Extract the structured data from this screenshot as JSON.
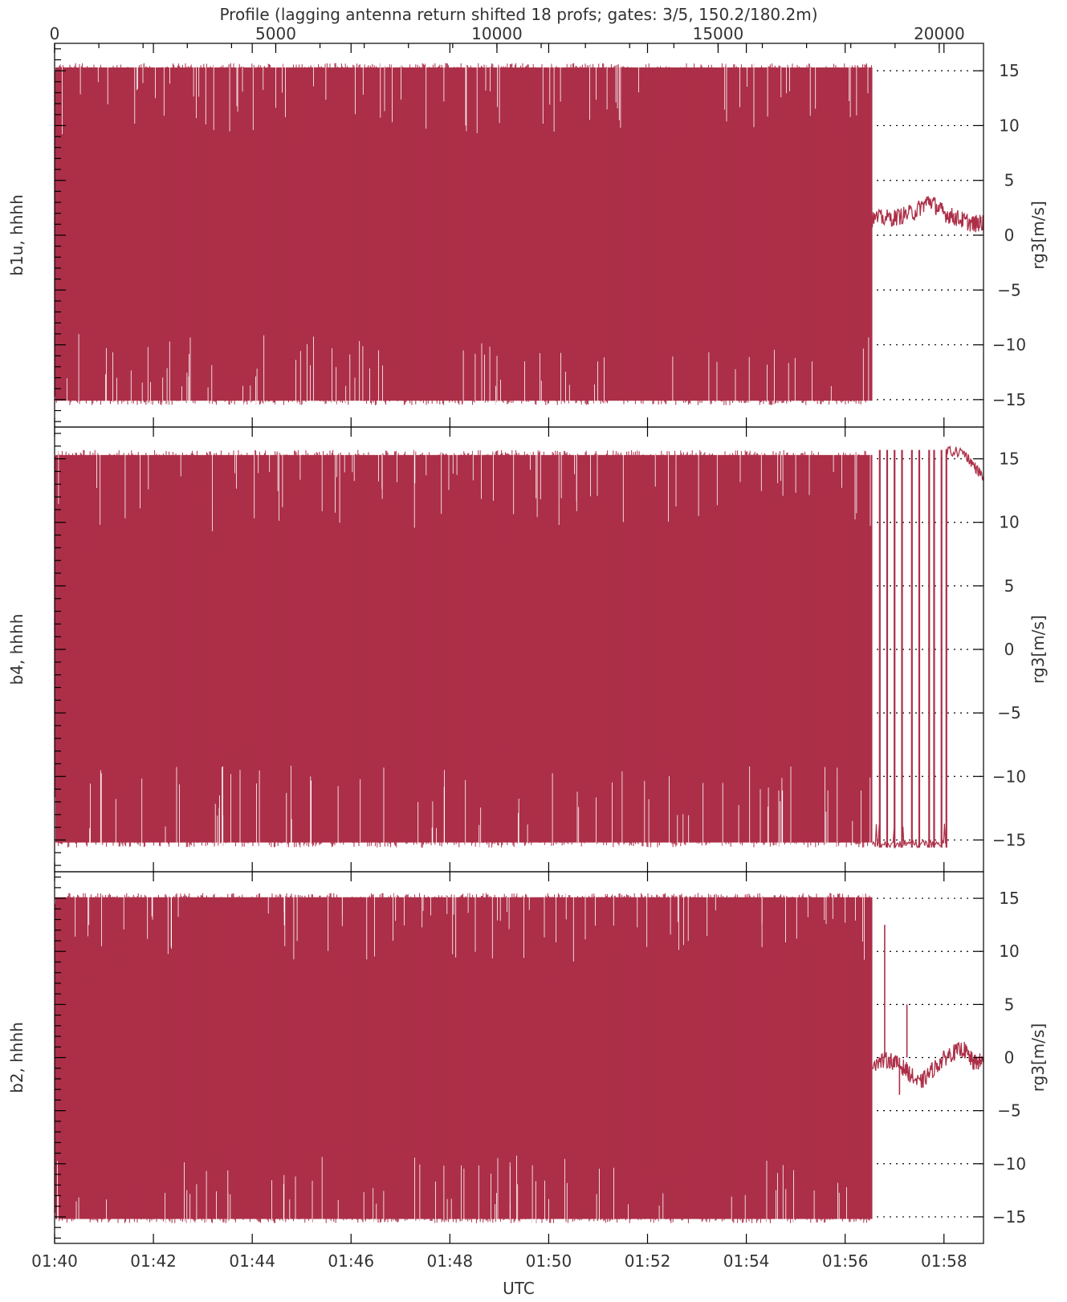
{
  "chart_data": {
    "type": "line",
    "top_axis": {
      "title": "Profile (lagging antenna return shifted 18 profs; gates: 3/5, 150.2/180.2m)",
      "range": [
        0,
        21000
      ],
      "ticks": [
        0,
        5000,
        10000,
        15000,
        20000
      ],
      "tick_labels": [
        "0",
        "5000",
        "10000",
        "15000",
        "20000"
      ]
    },
    "bottom_axis": {
      "title": "UTC",
      "range_minutes": [
        100,
        118.8
      ],
      "ticks_minutes": [
        100,
        102,
        104,
        106,
        108,
        110,
        112,
        114,
        116,
        118
      ],
      "tick_labels": [
        "01:40",
        "01:42",
        "01:44",
        "01:46",
        "01:48",
        "01:50",
        "01:52",
        "01:54",
        "01:56",
        "01:58"
      ]
    },
    "y_axis": {
      "ylim": [
        -17.5,
        17.5
      ],
      "ticks": [
        -15,
        -10,
        -5,
        0,
        5,
        10,
        15
      ],
      "tick_labels": [
        "−15",
        "−10",
        "−5",
        "0",
        "5",
        "10",
        "15"
      ],
      "ylabel_right": "rg3[m/s]"
    },
    "grid": "horizontal dotted at labeled ticks",
    "line_color": "#ac2f48",
    "panels": [
      {
        "label": "b1u, hhhh",
        "dense_until_minutes": 116.55,
        "dense_range": [
          -15.5,
          15.7
        ],
        "tail": [
          [
            116.55,
            1.5
          ],
          [
            117.0,
            1.6
          ],
          [
            117.4,
            2.1
          ],
          [
            117.7,
            3.2
          ],
          [
            118.0,
            2.0
          ],
          [
            118.3,
            1.5
          ],
          [
            118.6,
            1.0
          ],
          [
            118.8,
            1.2
          ]
        ]
      },
      {
        "label": "b4, hhhh",
        "dense_until_minutes": 116.55,
        "dense_range": [
          -15.6,
          15.7
        ],
        "spikes_minutes": [
          116.7,
          116.85,
          117.0,
          117.15,
          117.35,
          117.5,
          117.7,
          117.8,
          117.95,
          118.05
        ],
        "tail_top": [
          [
            118.05,
            15.6
          ],
          [
            118.4,
            15.5
          ],
          [
            118.6,
            14.5
          ],
          [
            118.8,
            13.5
          ]
        ]
      },
      {
        "label": "b2, hhhh",
        "dense_until_minutes": 116.55,
        "dense_range": [
          -15.6,
          15.5
        ],
        "tail": [
          [
            116.55,
            -0.5
          ],
          [
            116.9,
            -0.2
          ],
          [
            117.2,
            -1.0
          ],
          [
            117.5,
            -2.5
          ],
          [
            117.8,
            -1.0
          ],
          [
            118.1,
            0.3
          ],
          [
            118.4,
            0.8
          ],
          [
            118.6,
            -0.5
          ],
          [
            118.8,
            -0.3
          ]
        ],
        "spikes": [
          [
            116.8,
            12.5
          ],
          [
            117.1,
            -3.5
          ],
          [
            117.25,
            5.0
          ]
        ]
      }
    ]
  }
}
